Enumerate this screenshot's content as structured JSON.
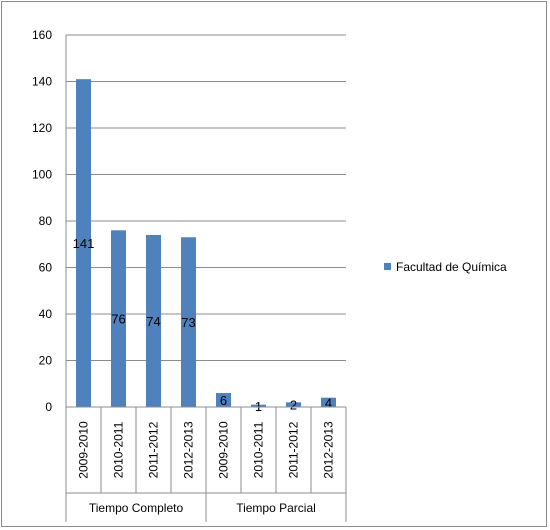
{
  "chart_data": {
    "type": "bar",
    "title": "",
    "xlabel": "",
    "ylabel": "",
    "ylim": [
      0,
      160
    ],
    "yticks": [
      0,
      20,
      40,
      60,
      80,
      100,
      120,
      140,
      160
    ],
    "grid": true,
    "legend_position": "right",
    "groups": [
      {
        "label": "Tiempo Completo",
        "categories": [
          "2009-2010",
          "2010-2011",
          "2011-2012",
          "2012-2013"
        ]
      },
      {
        "label": "Tiempo Parcial",
        "categories": [
          "2009-2010",
          "2010-2011",
          "2011-2012",
          "2012-2013"
        ]
      }
    ],
    "categories": [
      "2009-2010",
      "2010-2011",
      "2011-2012",
      "2012-2013",
      "2009-2010",
      "2010-2011",
      "2011-2012",
      "2012-2013"
    ],
    "series": [
      {
        "name": "Facultad de Química",
        "color": "#4f81bd",
        "values": [
          141,
          76,
          74,
          73,
          6,
          1,
          2,
          4
        ]
      }
    ],
    "data_labels": [
      "141",
      "76",
      "74",
      "73",
      "6",
      "1",
      "2",
      "4"
    ]
  }
}
